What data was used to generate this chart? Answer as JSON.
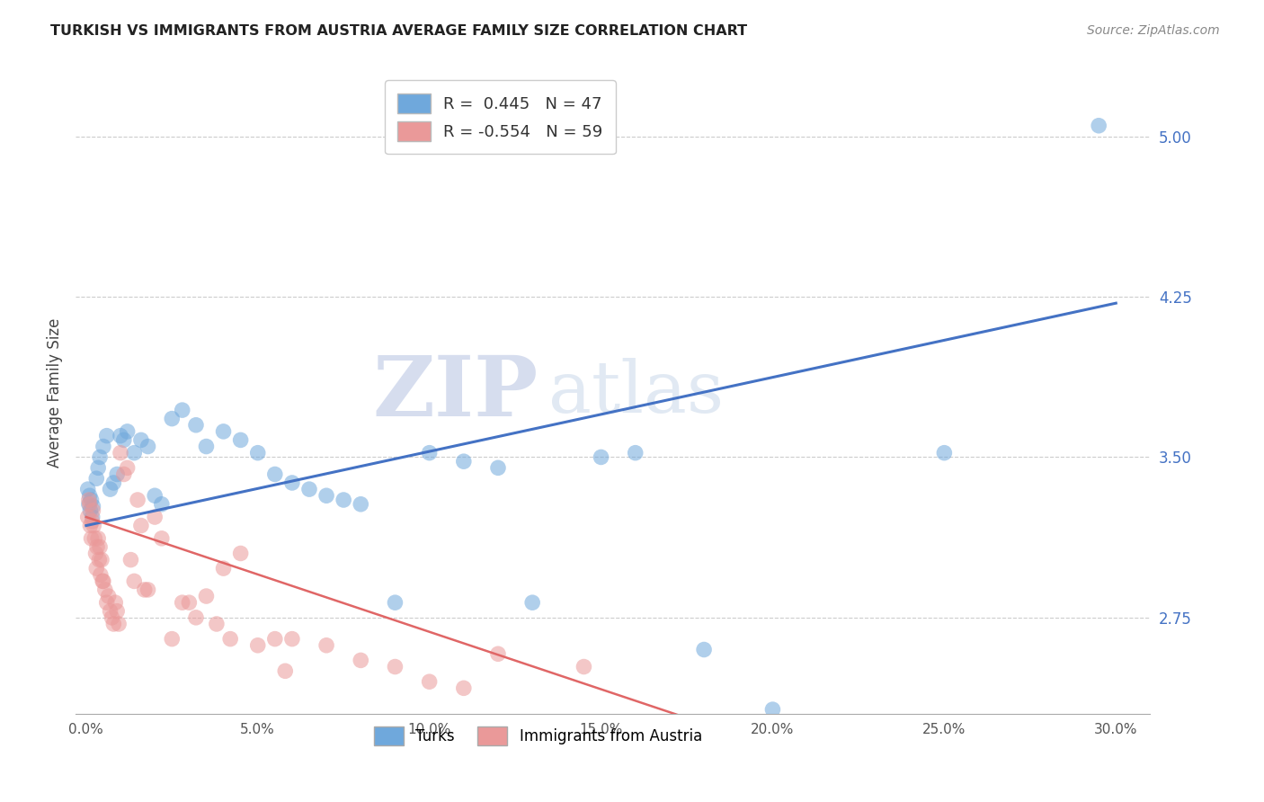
{
  "title": "TURKISH VS IMMIGRANTS FROM AUSTRIA AVERAGE FAMILY SIZE CORRELATION CHART",
  "source": "Source: ZipAtlas.com",
  "ylabel": "Average Family Size",
  "xlabel_ticks": [
    "0.0%",
    "5.0%",
    "10.0%",
    "15.0%",
    "20.0%",
    "25.0%",
    "30.0%"
  ],
  "xlabel_vals": [
    0.0,
    5.0,
    10.0,
    15.0,
    20.0,
    25.0,
    30.0
  ],
  "yticks": [
    2.75,
    3.5,
    4.25,
    5.0
  ],
  "ytick_labels": [
    "2.75",
    "3.50",
    "4.25",
    "5.00"
  ],
  "ylim": [
    2.3,
    5.3
  ],
  "xlim": [
    -0.3,
    31.0
  ],
  "blue_color": "#6fa8dc",
  "pink_color": "#ea9999",
  "blue_line_color": "#4472c4",
  "pink_line_color": "#e06666",
  "R_blue": 0.445,
  "N_blue": 47,
  "R_pink": -0.554,
  "N_pink": 59,
  "legend_label_blue": "Turks",
  "legend_label_pink": "Immigrants from Austria",
  "watermark_zip": "ZIP",
  "watermark_atlas": "atlas",
  "blue_trend": [
    0.0,
    3.18,
    30.0,
    4.22
  ],
  "pink_trend": [
    0.0,
    3.22,
    19.0,
    2.2
  ],
  "blue_x": [
    0.05,
    0.08,
    0.1,
    0.12,
    0.15,
    0.18,
    0.2,
    0.3,
    0.35,
    0.4,
    0.5,
    0.6,
    0.7,
    0.8,
    0.9,
    1.0,
    1.1,
    1.2,
    1.4,
    1.6,
    1.8,
    2.0,
    2.2,
    2.5,
    2.8,
    3.2,
    3.5,
    4.0,
    4.5,
    5.0,
    5.5,
    6.0,
    6.5,
    7.0,
    7.5,
    8.0,
    9.0,
    10.0,
    11.0,
    12.0,
    13.0,
    15.0,
    16.0,
    18.0,
    20.0,
    25.0,
    29.5
  ],
  "blue_y": [
    3.35,
    3.28,
    3.32,
    3.25,
    3.3,
    3.22,
    3.27,
    3.4,
    3.45,
    3.5,
    3.55,
    3.6,
    3.35,
    3.38,
    3.42,
    3.6,
    3.58,
    3.62,
    3.52,
    3.58,
    3.55,
    3.32,
    3.28,
    3.68,
    3.72,
    3.65,
    3.55,
    3.62,
    3.58,
    3.52,
    3.42,
    3.38,
    3.35,
    3.32,
    3.3,
    3.28,
    2.82,
    3.52,
    3.48,
    3.45,
    2.82,
    3.5,
    3.52,
    2.6,
    2.32,
    3.52,
    5.05
  ],
  "pink_x": [
    0.05,
    0.08,
    0.1,
    0.12,
    0.15,
    0.18,
    0.2,
    0.22,
    0.25,
    0.28,
    0.3,
    0.32,
    0.35,
    0.38,
    0.4,
    0.42,
    0.45,
    0.48,
    0.5,
    0.55,
    0.6,
    0.65,
    0.7,
    0.75,
    0.8,
    0.85,
    0.9,
    0.95,
    1.0,
    1.1,
    1.2,
    1.3,
    1.4,
    1.5,
    1.6,
    1.7,
    1.8,
    2.0,
    2.2,
    2.5,
    2.8,
    3.0,
    3.5,
    4.0,
    4.5,
    5.0,
    5.5,
    3.2,
    3.8,
    4.2,
    5.8,
    6.0,
    7.0,
    8.0,
    9.0,
    10.0,
    11.0,
    12.0,
    14.5
  ],
  "pink_y": [
    3.22,
    3.3,
    3.28,
    3.18,
    3.12,
    3.2,
    3.25,
    3.18,
    3.12,
    3.05,
    2.98,
    3.08,
    3.12,
    3.02,
    3.08,
    2.95,
    3.02,
    2.92,
    2.92,
    2.88,
    2.82,
    2.85,
    2.78,
    2.75,
    2.72,
    2.82,
    2.78,
    2.72,
    3.52,
    3.42,
    3.45,
    3.02,
    2.92,
    3.3,
    3.18,
    2.88,
    2.88,
    3.22,
    3.12,
    2.65,
    2.82,
    2.82,
    2.85,
    2.98,
    3.05,
    2.62,
    2.65,
    2.75,
    2.72,
    2.65,
    2.5,
    2.65,
    2.62,
    2.55,
    2.52,
    2.45,
    2.42,
    2.58,
    2.52
  ]
}
